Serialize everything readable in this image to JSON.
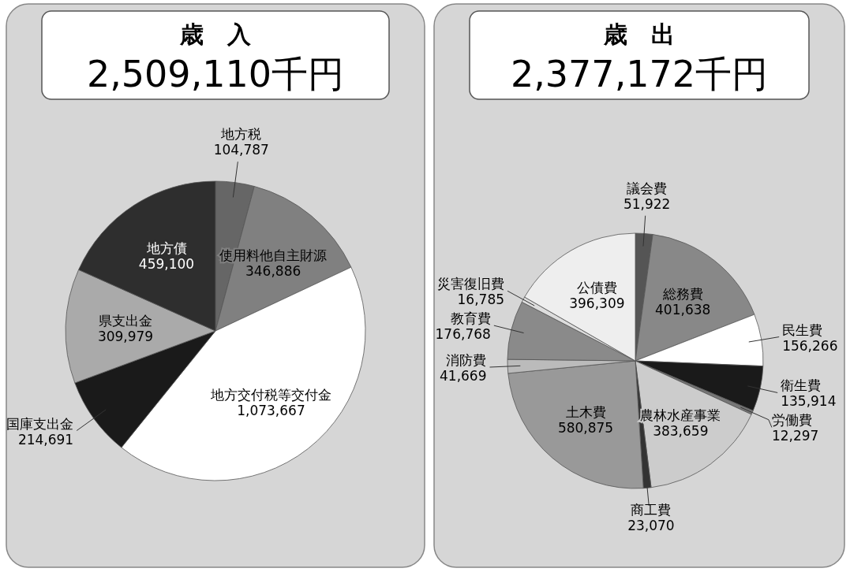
{
  "chart_data": [
    {
      "type": "pie",
      "title": "歳　入",
      "subtitle": "2,509,110千円",
      "value_labels": [
        "104,787",
        "346,886",
        "1,073,667",
        "214,691",
        "309,979",
        "459,100"
      ],
      "categories": [
        "地方税",
        "使用料他自主財源",
        "地方交付税等交付金",
        "国庫支出金",
        "県支出金",
        "地方債"
      ],
      "values": [
        104787,
        346886,
        1073667,
        214691,
        309979,
        459100
      ],
      "colors": [
        "#666666",
        "#808080",
        "#ffffff",
        "#1a1a1a",
        "#aaaaaa",
        "#2e2e2e"
      ]
    },
    {
      "type": "pie",
      "title": "歳　出",
      "subtitle": "2,377,172千円",
      "value_labels": [
        "51,922",
        "401,638",
        "156,266",
        "135,914",
        "12,297",
        "383,659",
        "23,070",
        "580,875",
        "41,669",
        "176,768",
        "16,785",
        "396,309"
      ],
      "categories": [
        "議会費",
        "総務費",
        "民生費",
        "衛生費",
        "労働費",
        "農林水産事業",
        "商工費",
        "土木費",
        "消防費",
        "教育費",
        "災害復旧費",
        "公債費"
      ],
      "values": [
        51922,
        401638,
        156266,
        135914,
        12297,
        383659,
        23070,
        580875,
        41669,
        176768,
        16785,
        396309
      ],
      "colors": [
        "#555555",
        "#888888",
        "#ffffff",
        "#1a1a1a",
        "#777777",
        "#cccccc",
        "#333333",
        "#999999",
        "#bbbbbb",
        "#8a8a8a",
        "#dddddd",
        "#eeeeee"
      ]
    }
  ]
}
